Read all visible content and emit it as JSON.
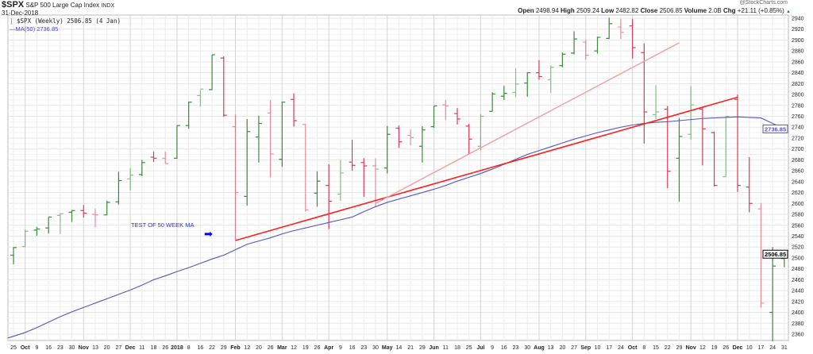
{
  "header": {
    "symbol": "$SPX",
    "name": "S&P 500 Large Cap Index",
    "exchange": "INDX",
    "date": "31-Dec-2018",
    "watermark": "@StockCharts.com",
    "open_label": "Open",
    "open": "2498.94",
    "high_label": "High",
    "high": "2509.24",
    "low_label": "Low",
    "low": "2482.82",
    "close_label": "Close",
    "close": "2506.85",
    "volume_label": "Volume",
    "volume": "2.0B",
    "chg_label": "Chg",
    "chg": "+21.11 (+0.85%)",
    "chg_arrow_icon": "triangle-up-icon"
  },
  "legend": {
    "price": "$SPX (Weekly) 2506.85 (4 Jan)",
    "ma": "MA(50) 2736.85"
  },
  "colors": {
    "up": "#3a8a3a",
    "down": "#d83a5a",
    "ma": "#5555bb",
    "trend": "#ff2020",
    "trend_light": "#f0a0a0",
    "annotation": "#0000ff"
  },
  "chart_data": {
    "type": "ohlc",
    "ylim": [
      2340,
      2950
    ],
    "yticks": [
      2360,
      2380,
      2400,
      2420,
      2440,
      2460,
      2480,
      2500,
      2520,
      2540,
      2560,
      2580,
      2600,
      2620,
      2640,
      2660,
      2680,
      2700,
      2720,
      2740,
      2760,
      2780,
      2800,
      2820,
      2840,
      2860,
      2880,
      2900,
      2920,
      2940
    ],
    "grid": true,
    "x_labels": [
      "25",
      "Oct",
      "9",
      "16",
      "23",
      "30",
      "Nov",
      "13",
      "20",
      "27",
      "Dec",
      "11",
      "18",
      "26",
      "2018",
      "8",
      "16",
      "22",
      "29",
      "Feb",
      "12",
      "20",
      "26",
      "Mar",
      "12",
      "19",
      "26",
      "Apr",
      "9",
      "16",
      "23",
      "30",
      "May",
      "14",
      "21",
      "29",
      "Jun",
      "11",
      "18",
      "25",
      "Jul",
      "9",
      "16",
      "23",
      "30",
      "Aug",
      "13",
      "20",
      "27",
      "Sep",
      "10",
      "17",
      "24",
      "Oct",
      "8",
      "15",
      "22",
      "29",
      "Nov",
      "12",
      "19",
      "26",
      "Dec",
      "10",
      "17",
      "24",
      "31"
    ],
    "bold_labels": [
      "Oct",
      "Nov",
      "Dec",
      "2018",
      "Feb",
      "Mar",
      "Apr",
      "May",
      "Jun",
      "Jul",
      "Aug",
      "Sep"
    ],
    "ohlc": [
      [
        2505,
        2520,
        2488,
        2519
      ],
      [
        2521,
        2552,
        2520,
        2549
      ],
      [
        2551,
        2557,
        2541,
        2553
      ],
      [
        2555,
        2575,
        2545,
        2575
      ],
      [
        2578,
        2582,
        2544,
        2581
      ],
      [
        2584,
        2588,
        2566,
        2587
      ],
      [
        2587,
        2597,
        2574,
        2582
      ],
      [
        2580,
        2590,
        2557,
        2579
      ],
      [
        2579,
        2605,
        2579,
        2602
      ],
      [
        2603,
        2658,
        2598,
        2642
      ],
      [
        2645,
        2665,
        2624,
        2652
      ],
      [
        2653,
        2680,
        2650,
        2675
      ],
      [
        2685,
        2695,
        2676,
        2683
      ],
      [
        2683,
        2695,
        2673,
        2673
      ],
      [
        2683,
        2743,
        2682,
        2743
      ],
      [
        2743,
        2787,
        2737,
        2786
      ],
      [
        2798,
        2808,
        2778,
        2810
      ],
      [
        2809,
        2873,
        2808,
        2873
      ],
      [
        2867,
        2870,
        2759,
        2762
      ],
      [
        2741,
        2763,
        2533,
        2620
      ],
      [
        2613,
        2755,
        2596,
        2732
      ],
      [
        2722,
        2761,
        2675,
        2747
      ],
      [
        2766,
        2790,
        2648,
        2691
      ],
      [
        2681,
        2787,
        2667,
        2786
      ],
      [
        2791,
        2802,
        2741,
        2752
      ],
      [
        2745,
        2746,
        2585,
        2588
      ],
      [
        2619,
        2659,
        2594,
        2641
      ],
      [
        2633,
        2672,
        2553,
        2604
      ],
      [
        2617,
        2680,
        2605,
        2656
      ],
      [
        2676,
        2717,
        2660,
        2670
      ],
      [
        2675,
        2683,
        2612,
        2669
      ],
      [
        2669,
        2683,
        2594,
        2663
      ],
      [
        2665,
        2742,
        2655,
        2727
      ],
      [
        2738,
        2743,
        2702,
        2713
      ],
      [
        2725,
        2736,
        2707,
        2721
      ],
      [
        2705,
        2742,
        2675,
        2735
      ],
      [
        2741,
        2779,
        2739,
        2779
      ],
      [
        2781,
        2790,
        2753,
        2779
      ],
      [
        2765,
        2775,
        2745,
        2755
      ],
      [
        2742,
        2746,
        2691,
        2718
      ],
      [
        2705,
        2764,
        2698,
        2760
      ],
      [
        2769,
        2804,
        2769,
        2801
      ],
      [
        2797,
        2816,
        2790,
        2802
      ],
      [
        2804,
        2848,
        2795,
        2819
      ],
      [
        2821,
        2841,
        2796,
        2840
      ],
      [
        2840,
        2863,
        2827,
        2833
      ],
      [
        2827,
        2853,
        2803,
        2850
      ],
      [
        2853,
        2877,
        2850,
        2874
      ],
      [
        2876,
        2916,
        2874,
        2902
      ],
      [
        2896,
        2900,
        2864,
        2872
      ],
      [
        2880,
        2906,
        2875,
        2905
      ],
      [
        2903,
        2941,
        2902,
        2930
      ],
      [
        2924,
        2939,
        2902,
        2914
      ],
      [
        2926,
        2939,
        2866,
        2886
      ],
      [
        2877,
        2894,
        2710,
        2768
      ],
      [
        2763,
        2817,
        2755,
        2768
      ],
      [
        2773,
        2779,
        2628,
        2659
      ],
      [
        2683,
        2757,
        2603,
        2723
      ],
      [
        2727,
        2815,
        2717,
        2781
      ],
      [
        2773,
        2775,
        2670,
        2737
      ],
      [
        2730,
        2732,
        2631,
        2633
      ],
      [
        2649,
        2760,
        2649,
        2760
      ],
      [
        2791,
        2800,
        2621,
        2633
      ],
      [
        2630,
        2685,
        2584,
        2600
      ],
      [
        2590,
        2601,
        2409,
        2417
      ],
      [
        2400,
        2520,
        2347,
        2485
      ],
      [
        2498.94,
        2509.24,
        2482.82,
        2506.85
      ]
    ],
    "ma50": [
      2353,
      2363,
      2372,
      2382,
      2392,
      2401,
      2409,
      2417,
      2425,
      2433,
      2441,
      2450,
      2460,
      2467,
      2475,
      2482,
      2490,
      2498,
      2505,
      2515,
      2525,
      2531,
      2537,
      2544,
      2550,
      2555,
      2560,
      2565,
      2570,
      2575,
      2585,
      2594,
      2602,
      2608,
      2614,
      2620,
      2626,
      2633,
      2641,
      2648,
      2655,
      2663,
      2672,
      2681,
      2690,
      2697,
      2704,
      2711,
      2718,
      2724,
      2730,
      2735,
      2740,
      2744,
      2747,
      2749,
      2750,
      2752,
      2754,
      2756,
      2757,
      2758,
      2759,
      2758,
      2757,
      2747,
      2737
    ],
    "trendlines": [
      {
        "from": [
          "Feb",
          2532
        ],
        "to": [
          "Dec",
          2795
        ],
        "from_index": 19,
        "to_index": 62,
        "style": "bold red"
      },
      {
        "from": [
          "30",
          2600
        ],
        "to": [
          "29",
          2895
        ],
        "from_index": 31,
        "to_index": 57,
        "style": "light red"
      }
    ],
    "annotation": {
      "text": "TEST OF 50 WEEK MA",
      "arrow_icon": "arrow-right-icon"
    },
    "last_values": {
      "ma": "2736.85",
      "price": "2506.85"
    }
  }
}
